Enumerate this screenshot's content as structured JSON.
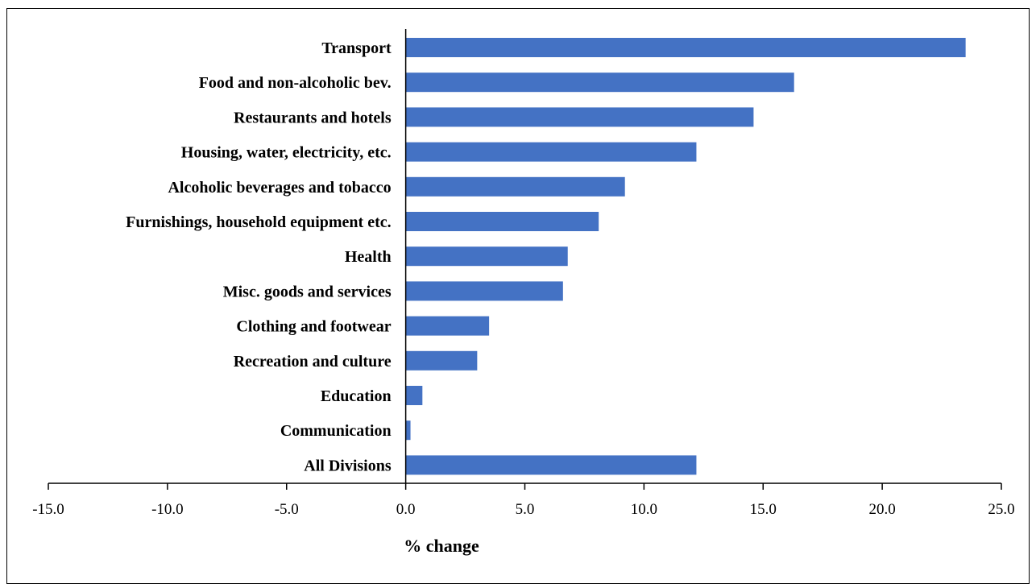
{
  "chart_data": {
    "type": "bar",
    "orientation": "horizontal",
    "categories": [
      "Transport",
      "Food and non-alcoholic bev.",
      "Restaurants and hotels",
      "Housing, water, electricity, etc.",
      "Alcoholic beverages and tobacco",
      "Furnishings, household equipment etc.",
      "Health",
      "Misc. goods and services",
      "Clothing and footwear",
      "Recreation and culture",
      "Education",
      "Communication",
      "All Divisions"
    ],
    "values": [
      23.5,
      16.3,
      14.6,
      12.2,
      9.2,
      8.1,
      6.8,
      6.6,
      3.5,
      3.0,
      0.7,
      0.2,
      12.2
    ],
    "xlabel": "% change",
    "ylabel": "",
    "xlim": [
      -15.0,
      25.0
    ],
    "xticks": [
      "-15.0",
      "-10.0",
      "-5.0",
      "0.0",
      "5.0",
      "10.0",
      "15.0",
      "20.0",
      "25.0"
    ],
    "grid": false,
    "colors": {
      "bar": "#4472C4",
      "axis": "#000000"
    }
  }
}
